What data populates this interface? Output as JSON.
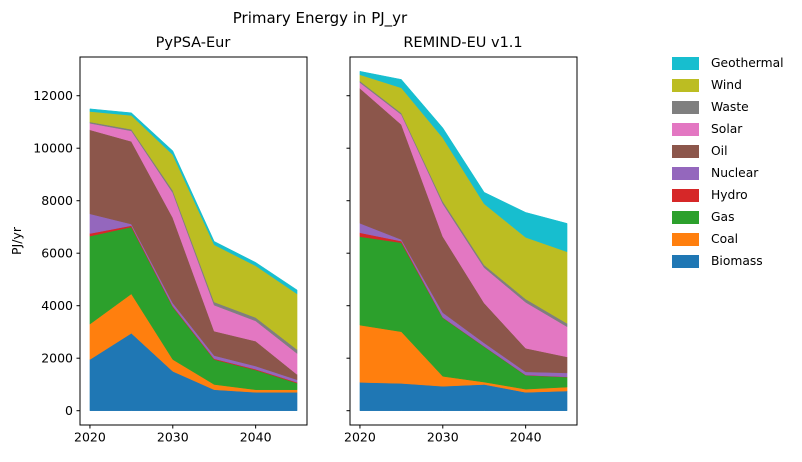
{
  "figure": {
    "title": "Primary Energy in PJ_yr",
    "ylabel": "PJ/yr"
  },
  "legend": {
    "entries": [
      "Geothermal",
      "Wind",
      "Waste",
      "Solar",
      "Oil",
      "Nuclear",
      "Hydro",
      "Gas",
      "Coal",
      "Biomass"
    ]
  },
  "chart_data": [
    {
      "type": "area",
      "stacked": true,
      "title": "PyPSA-Eur",
      "x": [
        2020,
        2025,
        2030,
        2035,
        2040,
        2045
      ],
      "xticks": [
        2020,
        2030,
        2040
      ],
      "yticks": [
        0,
        2000,
        4000,
        6000,
        8000,
        10000,
        12000
      ],
      "xlim": [
        2018.8,
        2046.2
      ],
      "ylim": [
        -545,
        13475
      ],
      "show_ytick_labels": true,
      "grid": false,
      "series": [
        {
          "name": "Biomass",
          "color": "#1f77b4",
          "values": [
            1950,
            2950,
            1500,
            800,
            700,
            700
          ]
        },
        {
          "name": "Coal",
          "color": "#ff7f0e",
          "values": [
            1350,
            1500,
            450,
            200,
            100,
            100
          ]
        },
        {
          "name": "Gas",
          "color": "#2ca02c",
          "values": [
            3350,
            2550,
            2000,
            950,
            750,
            250
          ]
        },
        {
          "name": "Hydro",
          "color": "#d62728",
          "values": [
            100,
            50,
            30,
            30,
            30,
            30
          ]
        },
        {
          "name": "Nuclear",
          "color": "#9467bd",
          "values": [
            750,
            60,
            120,
            120,
            120,
            100
          ]
        },
        {
          "name": "Oil",
          "color": "#8c564b",
          "values": [
            3200,
            3150,
            3250,
            930,
            950,
            200
          ]
        },
        {
          "name": "Solar",
          "color": "#e377c2",
          "values": [
            250,
            400,
            950,
            990,
            770,
            800
          ]
        },
        {
          "name": "Waste",
          "color": "#7f7f7f",
          "values": [
            50,
            60,
            90,
            120,
            130,
            150
          ]
        },
        {
          "name": "Wind",
          "color": "#bcbd22",
          "values": [
            400,
            530,
            1360,
            2180,
            1970,
            2120
          ]
        },
        {
          "name": "Geothermal",
          "color": "#17becf",
          "values": [
            100,
            100,
            150,
            130,
            130,
            150
          ]
        }
      ]
    },
    {
      "type": "area",
      "stacked": true,
      "title": "REMIND-EU v1.1",
      "x": [
        2020,
        2025,
        2030,
        2035,
        2040,
        2045
      ],
      "xticks": [
        2020,
        2030,
        2040
      ],
      "yticks": [
        0,
        2000,
        4000,
        6000,
        8000,
        10000,
        12000
      ],
      "xlim": [
        2018.8,
        2046.2
      ],
      "ylim": [
        -545,
        13475
      ],
      "show_ytick_labels": false,
      "grid": false,
      "series": [
        {
          "name": "Biomass",
          "color": "#1f77b4",
          "values": [
            1080,
            1040,
            930,
            1000,
            700,
            750
          ]
        },
        {
          "name": "Coal",
          "color": "#ff7f0e",
          "values": [
            2180,
            1970,
            380,
            90,
            120,
            150
          ]
        },
        {
          "name": "Gas",
          "color": "#2ca02c",
          "values": [
            3370,
            3390,
            2230,
            1350,
            530,
            380
          ]
        },
        {
          "name": "Hydro",
          "color": "#d62728",
          "values": [
            150,
            60,
            15,
            10,
            10,
            10
          ]
        },
        {
          "name": "Nuclear",
          "color": "#9467bd",
          "values": [
            360,
            60,
            180,
            130,
            120,
            150
          ]
        },
        {
          "name": "Oil",
          "color": "#8c564b",
          "values": [
            5140,
            4380,
            2900,
            1520,
            900,
            610
          ]
        },
        {
          "name": "Solar",
          "color": "#e377c2",
          "values": [
            220,
            380,
            1250,
            1350,
            1750,
            1150
          ]
        },
        {
          "name": "Waste",
          "color": "#7f7f7f",
          "values": [
            60,
            60,
            90,
            100,
            125,
            125
          ]
        },
        {
          "name": "Wind",
          "color": "#bcbd22",
          "values": [
            240,
            960,
            2420,
            2330,
            2350,
            2730
          ]
        },
        {
          "name": "Geothermal",
          "color": "#17becf",
          "values": [
            130,
            320,
            380,
            440,
            950,
            1080
          ]
        }
      ]
    }
  ]
}
